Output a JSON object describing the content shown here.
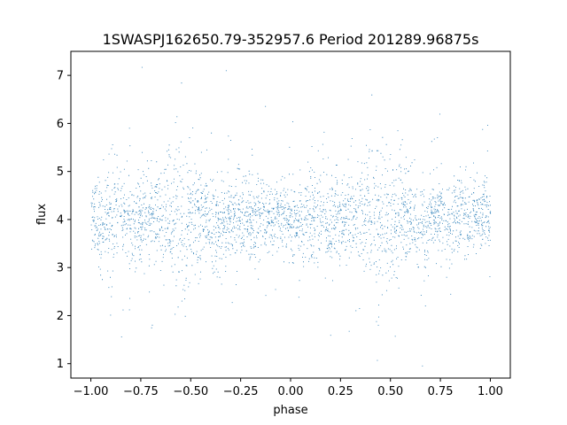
{
  "chart_data": {
    "type": "scatter",
    "title": "1SWASPJ162650.79-352957.6 Period 201289.96875s",
    "xlabel": "phase",
    "ylabel": "flux",
    "xlim": [
      -1.1,
      1.1
    ],
    "ylim": [
      0.7,
      7.5
    ],
    "xticks": [
      -1.0,
      -0.75,
      -0.5,
      -0.25,
      0.0,
      0.25,
      0.5,
      0.75,
      1.0
    ],
    "xtick_labels": [
      "−1.00",
      "−0.75",
      "−0.50",
      "−0.25",
      "0.00",
      "0.25",
      "0.50",
      "0.75",
      "1.00"
    ],
    "yticks": [
      1,
      2,
      3,
      4,
      5,
      6,
      7
    ],
    "ytick_labels": [
      "1",
      "2",
      "3",
      "4",
      "5",
      "6",
      "7"
    ],
    "grid": false,
    "legend": "none",
    "marker_color": "#1f77b4",
    "series": [
      {
        "profile": {
          "phase": [
            -1.0,
            -0.95,
            -0.9,
            -0.85,
            -0.8,
            -0.75,
            -0.7,
            -0.65,
            -0.6,
            -0.55,
            -0.5,
            -0.45,
            -0.4,
            -0.35,
            -0.3,
            -0.25,
            -0.2,
            -0.15,
            -0.1,
            -0.05,
            0.0,
            0.05,
            0.1,
            0.15,
            0.2,
            0.25,
            0.3,
            0.35,
            0.4,
            0.45,
            0.5,
            0.55,
            0.6,
            0.65,
            0.7,
            0.75,
            0.8,
            0.85,
            0.9,
            0.95,
            1.0
          ],
          "median_flux": [
            4.1,
            3.8,
            4.0,
            4.1,
            3.9,
            4.0,
            4.1,
            4.1,
            4.2,
            4.0,
            4.0,
            4.1,
            4.0,
            3.8,
            4.0,
            4.1,
            4.0,
            4.1,
            4.0,
            4.1,
            4.1,
            3.8,
            4.0,
            4.1,
            3.9,
            4.0,
            4.1,
            4.1,
            4.2,
            4.0,
            4.0,
            4.1,
            4.0,
            3.8,
            4.0,
            4.1,
            4.0,
            4.1,
            4.0,
            4.1,
            4.1
          ],
          "spread": [
            0.35,
            0.45,
            0.55,
            0.5,
            0.5,
            0.45,
            0.4,
            0.55,
            0.7,
            0.8,
            0.6,
            0.55,
            0.5,
            0.45,
            0.4,
            0.4,
            0.4,
            0.4,
            0.35,
            0.35,
            0.35,
            0.45,
            0.55,
            0.5,
            0.5,
            0.45,
            0.4,
            0.55,
            0.7,
            0.8,
            0.6,
            0.55,
            0.5,
            0.45,
            0.4,
            0.4,
            0.4,
            0.4,
            0.35,
            0.35,
            0.35
          ]
        }
      }
    ]
  }
}
